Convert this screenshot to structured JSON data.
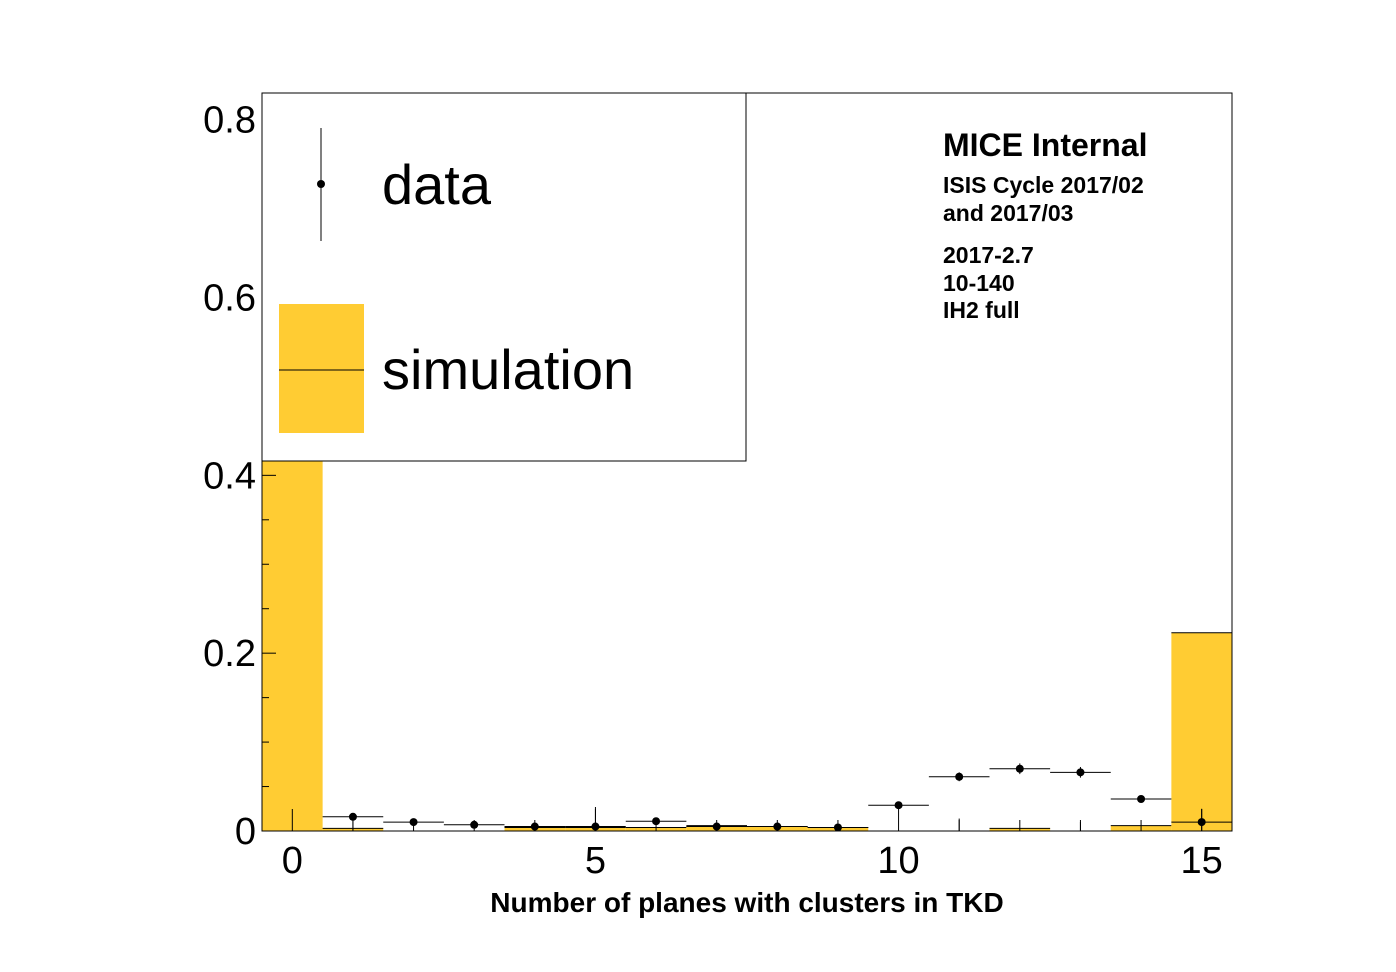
{
  "chart_data": {
    "type": "bar",
    "xlabel": "Number of planes with clusters in TKD",
    "ylabel": "",
    "xlim": [
      -0.5,
      15.5
    ],
    "ylim": [
      0,
      0.83
    ],
    "x_ticks": [
      0,
      5,
      10,
      15
    ],
    "x_tick_labels": [
      "0",
      "5",
      "10",
      "15"
    ],
    "y_ticks": [
      0,
      0.2,
      0.4,
      0.6,
      0.8
    ],
    "y_tick_labels": [
      "0",
      "0.2",
      "0.4",
      "0.6",
      "0.8"
    ],
    "grid": false,
    "legend_position": "top-left",
    "fill_color": "#ffcc33",
    "series": [
      {
        "name": "simulation",
        "kind": "histogram",
        "x": [
          0,
          1,
          2,
          3,
          4,
          5,
          6,
          7,
          8,
          9,
          10,
          11,
          12,
          13,
          14,
          15
        ],
        "values": [
          0.44,
          0.003,
          0.0,
          0.0,
          0.004,
          0.004,
          0.004,
          0.006,
          0.005,
          0.004,
          0.0,
          0.0,
          0.003,
          0.0,
          0.006,
          0.223
        ],
        "errors": [
          0.0,
          0.01,
          0.0,
          0.0,
          0.0,
          0.0,
          0.0,
          0.0,
          0.0,
          0.0,
          0.0,
          0.014,
          0.0,
          0.01,
          0.0,
          0.0
        ]
      },
      {
        "name": "data",
        "kind": "points",
        "x": [
          1,
          2,
          3,
          4,
          5,
          6,
          7,
          8,
          9,
          10,
          11,
          12,
          13,
          14,
          15
        ],
        "values": [
          0.016,
          0.01,
          0.007,
          0.005,
          0.005,
          0.011,
          0.005,
          0.005,
          0.004,
          0.029,
          0.061,
          0.07,
          0.066,
          0.036,
          0.01
        ],
        "errors": [
          0.002,
          0.002,
          0.002,
          0.002,
          0.022,
          0.002,
          0.002,
          0.002,
          0.002,
          0.004,
          0.005,
          0.006,
          0.006,
          0.003,
          0.015
        ]
      }
    ],
    "legend": [
      {
        "label": "data",
        "marker": "point"
      },
      {
        "label": "simulation",
        "marker": "box"
      }
    ],
    "annotations": {
      "title": "MICE Internal",
      "lines": [
        "ISIS Cycle 2017/02",
        "and 2017/03",
        "2017-2.7",
        "10-140",
        "IH2 full"
      ]
    }
  }
}
